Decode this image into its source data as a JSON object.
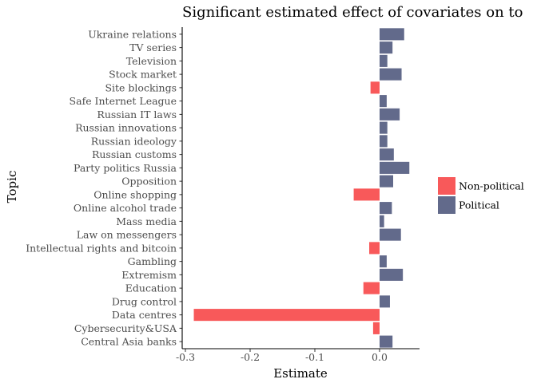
{
  "chart_data": {
    "type": "bar",
    "orientation": "horizontal",
    "title": "Significant estimated effect of covariates on to",
    "xlabel": "Estimate",
    "ylabel": "Topic",
    "xlim": [
      -0.3,
      0.06
    ],
    "xticks": [
      -0.3,
      -0.2,
      -0.1,
      0.0
    ],
    "xtick_labels": [
      "-0.3",
      "-0.2",
      "-0.1",
      "0.0"
    ],
    "grid": false,
    "legend_position": "right",
    "legend": [
      {
        "name": "Non-political",
        "color": "#f8595a"
      },
      {
        "name": "Political",
        "color": "#626a8b"
      }
    ],
    "categories": [
      "Ukraine relations",
      "TV series",
      "Television",
      "Stock market",
      "Site blockings",
      "Safe Internet League",
      "Russian IT laws",
      "Russian innovations",
      "Russian ideology",
      "Russian customs",
      "Party politics Russia",
      "Opposition",
      "Online shopping",
      "Online alcohol trade",
      "Mass media",
      "Law on messengers",
      "Intellectual rights and bitcoin",
      "Gambling",
      "Extremism",
      "Education",
      "Drug control",
      "Data centres",
      "Cybersecurity&USA",
      "Central Asia banks"
    ],
    "values": [
      0.038,
      0.02,
      0.012,
      0.034,
      -0.014,
      0.011,
      0.031,
      0.012,
      0.012,
      0.022,
      0.046,
      0.021,
      -0.04,
      0.019,
      0.007,
      0.033,
      -0.016,
      0.011,
      0.036,
      -0.025,
      0.016,
      -0.287,
      -0.01,
      0.02
    ],
    "groups": [
      "Political",
      "Political",
      "Political",
      "Political",
      "Non-political",
      "Political",
      "Political",
      "Political",
      "Political",
      "Political",
      "Political",
      "Political",
      "Non-political",
      "Political",
      "Political",
      "Political",
      "Non-political",
      "Political",
      "Political",
      "Non-political",
      "Political",
      "Non-political",
      "Non-political",
      "Political"
    ]
  }
}
